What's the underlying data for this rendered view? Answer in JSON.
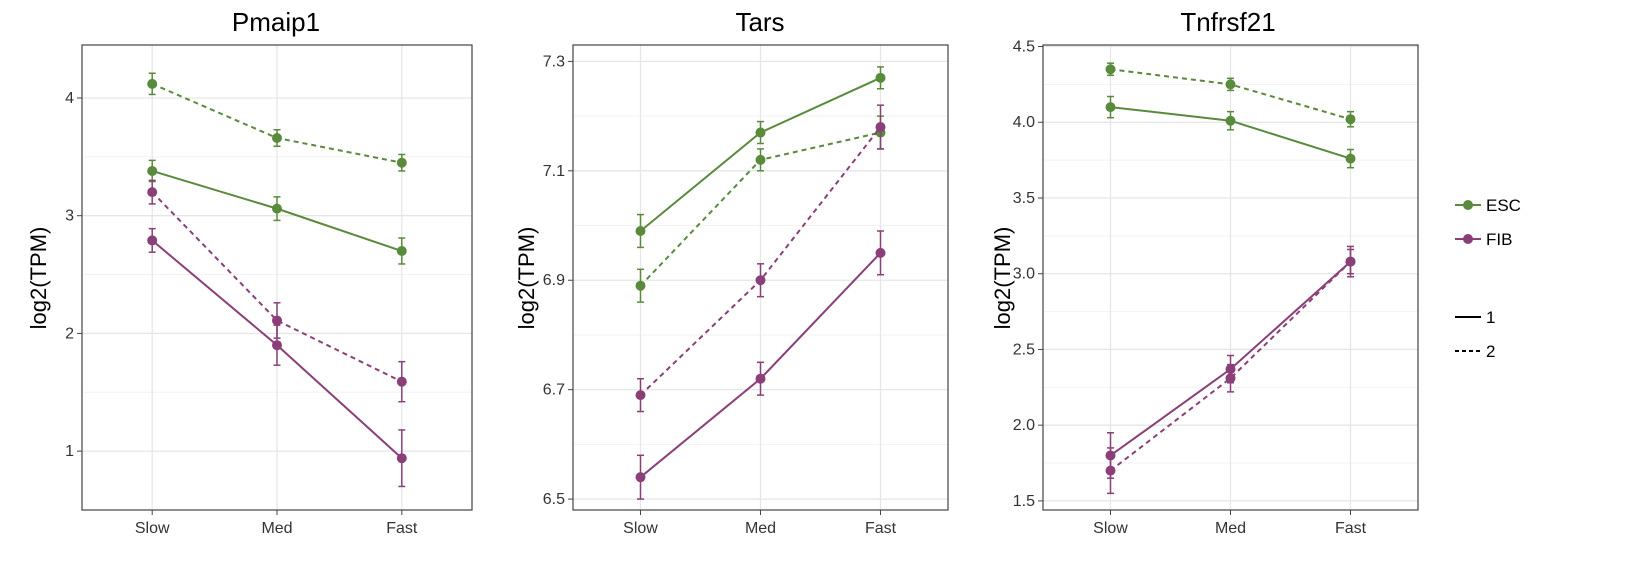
{
  "x_categories": [
    "Slow",
    "Med",
    "Fast"
  ],
  "chart_data": [
    {
      "type": "line",
      "title": "Pmaip1",
      "xlabel": "",
      "ylabel": "log2(TPM)",
      "ylim": [
        0.5,
        4.45
      ],
      "yticks": [
        1,
        2,
        3,
        4
      ],
      "ytick_labels": [
        "1",
        "2",
        "3",
        "4"
      ],
      "grid": true,
      "series": [
        {
          "cell": "ESC",
          "rep": "1",
          "values": [
            3.38,
            3.06,
            2.7
          ],
          "err": [
            0.09,
            0.1,
            0.11
          ]
        },
        {
          "cell": "ESC",
          "rep": "2",
          "values": [
            4.12,
            3.66,
            3.45
          ],
          "err": [
            0.09,
            0.07,
            0.07
          ]
        },
        {
          "cell": "FIB",
          "rep": "1",
          "values": [
            2.79,
            1.9,
            0.94
          ],
          "err": [
            0.1,
            0.17,
            0.24
          ]
        },
        {
          "cell": "FIB",
          "rep": "2",
          "values": [
            3.2,
            2.11,
            1.59
          ],
          "err": [
            0.1,
            0.15,
            0.17
          ]
        }
      ]
    },
    {
      "type": "line",
      "title": "Tars",
      "xlabel": "",
      "ylabel": "log2(TPM)",
      "ylim": [
        6.48,
        7.33
      ],
      "yticks": [
        6.5,
        6.7,
        6.9,
        7.1,
        7.3
      ],
      "ytick_labels": [
        "6.5",
        "6.7",
        "6.9",
        "7.1",
        "7.3"
      ],
      "grid": true,
      "series": [
        {
          "cell": "ESC",
          "rep": "1",
          "values": [
            6.99,
            7.17,
            7.27
          ],
          "err": [
            0.03,
            0.02,
            0.02
          ]
        },
        {
          "cell": "ESC",
          "rep": "2",
          "values": [
            6.89,
            7.12,
            7.17
          ],
          "err": [
            0.03,
            0.02,
            0.03
          ]
        },
        {
          "cell": "FIB",
          "rep": "1",
          "values": [
            6.54,
            6.72,
            6.95
          ],
          "err": [
            0.04,
            0.03,
            0.04
          ]
        },
        {
          "cell": "FIB",
          "rep": "2",
          "values": [
            6.69,
            6.9,
            7.18
          ],
          "err": [
            0.03,
            0.03,
            0.04
          ]
        }
      ]
    },
    {
      "type": "line",
      "title": "Tnfrsf21",
      "xlabel": "",
      "ylabel": "log2(TPM)",
      "ylim": [
        1.44,
        4.51
      ],
      "yticks": [
        1.5,
        2.0,
        2.5,
        3.0,
        3.5,
        4.0,
        4.5
      ],
      "ytick_labels": [
        "1.5",
        "2.0",
        "2.5",
        "3.0",
        "3.5",
        "4.0",
        "4.5"
      ],
      "grid": true,
      "series": [
        {
          "cell": "ESC",
          "rep": "1",
          "values": [
            4.1,
            4.01,
            3.76
          ],
          "err": [
            0.07,
            0.06,
            0.06
          ]
        },
        {
          "cell": "ESC",
          "rep": "2",
          "values": [
            4.35,
            4.25,
            4.02
          ],
          "err": [
            0.04,
            0.04,
            0.05
          ]
        },
        {
          "cell": "FIB",
          "rep": "1",
          "values": [
            1.8,
            2.37,
            3.08
          ],
          "err": [
            0.15,
            0.09,
            0.08
          ]
        },
        {
          "cell": "FIB",
          "rep": "2",
          "values": [
            1.7,
            2.31,
            3.08
          ],
          "err": [
            0.15,
            0.09,
            0.1
          ]
        }
      ]
    }
  ],
  "legend": {
    "colors": [
      {
        "label": "ESC",
        "color": "#5a8a3c"
      },
      {
        "label": "FIB",
        "color": "#8b3f78"
      }
    ],
    "linetypes": [
      {
        "label": "1",
        "dash": "solid"
      },
      {
        "label": "2",
        "dash": "dashed"
      }
    ],
    "placement": "right"
  }
}
